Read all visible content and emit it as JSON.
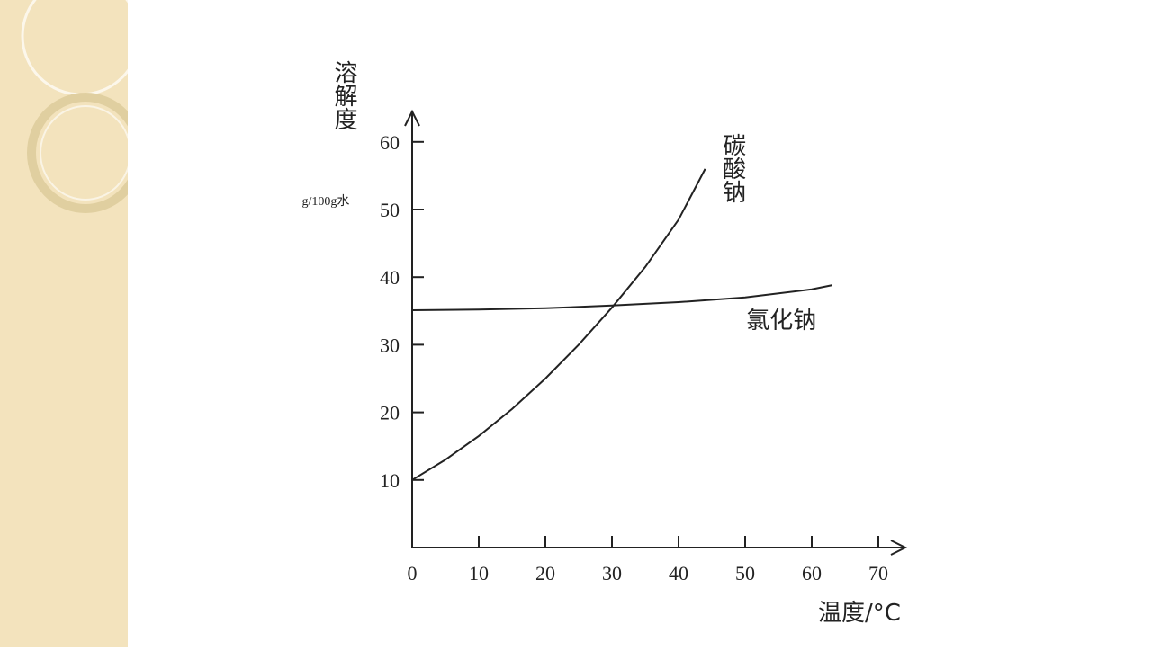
{
  "chart_data": {
    "type": "line",
    "y_label": "溶解度",
    "y_unit": "g/100g水",
    "x_label": "温度/°C",
    "xlim": [
      0,
      74
    ],
    "ylim": [
      0,
      64.4
    ],
    "xticks": [
      0,
      10,
      20,
      30,
      40,
      50,
      60,
      70
    ],
    "yticks": [
      10,
      20,
      30,
      40,
      50,
      60
    ],
    "series": [
      {
        "name": "碳酸钠",
        "color": "#222222",
        "x": [
          0,
          5,
          10,
          15,
          20,
          25,
          30,
          35,
          40,
          44
        ],
        "values": [
          10,
          13,
          16.5,
          20.5,
          25,
          30,
          35.5,
          41.5,
          48.5,
          56
        ]
      },
      {
        "name": "氯化钠",
        "color": "#222222",
        "x": [
          0,
          10,
          20,
          30,
          40,
          50,
          60,
          63
        ],
        "values": [
          35.1,
          35.2,
          35.4,
          35.8,
          36.3,
          37,
          38.2,
          38.8
        ]
      }
    ]
  }
}
